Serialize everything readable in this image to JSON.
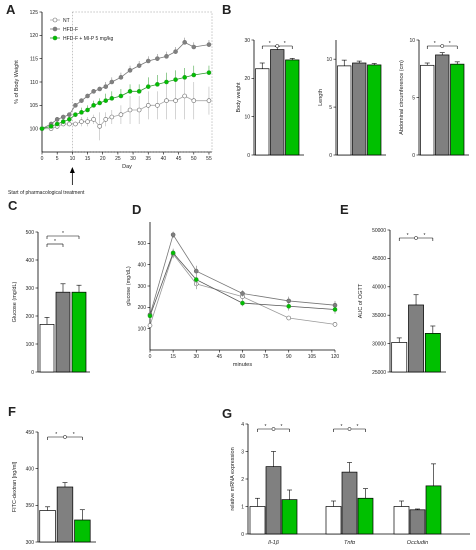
{
  "colors": {
    "nt": "#ffffff",
    "hfd": "#808080",
    "mip": "#00c000",
    "axis": "#000000"
  },
  "panels": {
    "A": {
      "label": "A",
      "legend": [
        "NT",
        "HFD-F",
        "HFD-F + MI-P 5 mg/kg"
      ],
      "annotation": "Start of pharmacological treatment",
      "chart_data": {
        "type": "line",
        "xlabel": "Day",
        "ylabel": "% of Body Weight",
        "xlim": [
          0,
          56
        ],
        "ylim": [
          95,
          125
        ],
        "xticks": [
          0,
          5,
          10,
          15,
          20,
          25,
          30,
          35,
          40,
          45,
          50,
          55
        ],
        "yticks": [
          100,
          105,
          110,
          115,
          120,
          125
        ],
        "treatment_day": 10,
        "series": [
          {
            "name": "NT",
            "x": [
              0,
              3,
              5,
              7,
              9,
              11,
              13,
              15,
              17,
              19,
              21,
              23,
              26,
              29,
              32,
              35,
              38,
              41,
              44,
              47,
              50,
              55
            ],
            "y": [
              100,
              100,
              100.5,
              101,
              101,
              101,
              101.5,
              101.5,
              102,
              100.5,
              102,
              102.5,
              103,
              104,
              104,
              105,
              105,
              106,
              106,
              107,
              106,
              106
            ],
            "err": [
              0.5,
              0.5,
              0.5,
              0.5,
              0.5,
              0.5,
              1,
              1,
              1,
              3,
              1.5,
              1.5,
              2,
              3,
              3,
              3,
              3,
              4,
              4,
              5,
              4,
              3
            ]
          },
          {
            "name": "HFD-F",
            "x": [
              0,
              3,
              5,
              7,
              9,
              11,
              13,
              15,
              17,
              19,
              21,
              23,
              26,
              29,
              32,
              35,
              38,
              41,
              44,
              47,
              50,
              55
            ],
            "y": [
              100,
              101,
              102,
              102.5,
              103,
              105,
              106,
              107,
              108,
              108.5,
              109,
              110,
              111,
              112.5,
              113.5,
              114.5,
              115,
              115.5,
              116.5,
              118.5,
              117.5,
              118
            ],
            "err": [
              0.3,
              0.5,
              0.5,
              0.5,
              0.5,
              0.5,
              0.5,
              0.5,
              0.5,
              0.5,
              1,
              1,
              1,
              1,
              1,
              1,
              1,
              1,
              1,
              1,
              1,
              1
            ]
          },
          {
            "name": "HFD-F + MI-P 5 mg/kg",
            "x": [
              0,
              3,
              5,
              7,
              9,
              11,
              13,
              15,
              17,
              19,
              21,
              23,
              26,
              29,
              32,
              35,
              38,
              41,
              44,
              47,
              50,
              55
            ],
            "y": [
              100,
              100.5,
              101,
              101.5,
              102,
              103,
              103.5,
              104,
              105,
              105.5,
              106,
              106.5,
              107,
              108,
              108,
              109,
              109.5,
              110,
              110.5,
              111,
              111.5,
              112
            ],
            "err": [
              0.3,
              0.5,
              0.5,
              0.5,
              0.5,
              0.5,
              1,
              1,
              1,
              1,
              1.5,
              1.5,
              1.5,
              1.5,
              1.5,
              2,
              2,
              2,
              2,
              2,
              2,
              1.5
            ]
          }
        ]
      }
    },
    "B": {
      "label": "B",
      "charts": [
        {
          "type": "bar",
          "ylabel": "Body weight",
          "ylim": [
            0,
            30
          ],
          "yticks": [
            0,
            10,
            20,
            30
          ],
          "values": [
            22.5,
            27.5,
            24.8
          ],
          "err": [
            1.5,
            0.8,
            0.4
          ],
          "sig": true
        },
        {
          "type": "bar",
          "ylabel": "Length",
          "ylim": [
            0,
            12
          ],
          "yticks": [
            0,
            5,
            10
          ],
          "values": [
            9.3,
            9.6,
            9.4
          ],
          "err": [
            0.6,
            0.2,
            0.15
          ],
          "sig": false
        },
        {
          "type": "bar",
          "ylabel": "Abdominal circumference (cm)",
          "ylim": [
            0,
            10
          ],
          "yticks": [
            0,
            5,
            10
          ],
          "values": [
            7.8,
            8.7,
            7.9
          ],
          "err": [
            0.2,
            0.2,
            0.2
          ],
          "sig": true
        }
      ]
    },
    "C": {
      "label": "C",
      "chart_data": {
        "type": "bar",
        "ylabel": "Glucose (mg/dL)",
        "ylim": [
          0,
          500
        ],
        "yticks": [
          0,
          100,
          200,
          300,
          400,
          500
        ],
        "values": [
          170,
          285,
          285
        ],
        "err": [
          25,
          30,
          25
        ],
        "sig": true
      }
    },
    "D": {
      "label": "D",
      "chart_data": {
        "type": "line",
        "xlabel": "minutes",
        "ylabel": "glucose (mg/dL)",
        "xlim": [
          0,
          120
        ],
        "ylim": [
          0,
          600
        ],
        "xticks": [
          0,
          15,
          30,
          45,
          60,
          75,
          90,
          105,
          120
        ],
        "yticks": [
          100,
          200,
          300,
          400,
          500
        ],
        "series": [
          {
            "name": "NT",
            "x": [
              0,
              15,
              30,
              60,
              90,
              120
            ],
            "y": [
              115,
              450,
              310,
              250,
              150,
              120
            ],
            "err": [
              10,
              20,
              25,
              15,
              10,
              10
            ]
          },
          {
            "name": "HFD-F",
            "x": [
              0,
              15,
              30,
              60,
              90,
              120
            ],
            "y": [
              165,
              540,
              370,
              265,
              230,
              210
            ],
            "err": [
              15,
              15,
              25,
              15,
              20,
              20
            ]
          },
          {
            "name": "HFD-F + MI-P 5 mg/kg",
            "x": [
              0,
              15,
              30,
              60,
              90,
              120
            ],
            "y": [
              160,
              455,
              330,
              220,
              205,
              190
            ],
            "err": [
              15,
              20,
              25,
              15,
              20,
              20
            ]
          }
        ]
      }
    },
    "E": {
      "label": "E",
      "chart_data": {
        "type": "bar",
        "ylabel": "AUC of OGTT",
        "ylim": [
          25000,
          50000
        ],
        "yticks": [
          25000,
          30000,
          35000,
          40000,
          45000,
          50000
        ],
        "values": [
          30200,
          36800,
          31800
        ],
        "err": [
          800,
          1800,
          1300
        ],
        "sig": true
      }
    },
    "F": {
      "label": "F",
      "chart_data": {
        "type": "bar",
        "ylabel": "FITC-dextran [ng/ml]",
        "ylim": [
          300,
          450
        ],
        "yticks": [
          300,
          350,
          400,
          450
        ],
        "values": [
          343,
          375,
          330
        ],
        "err": [
          5,
          6,
          14
        ],
        "sig": true
      }
    },
    "G": {
      "label": "G",
      "chart_data": {
        "type": "bar",
        "ylabel": "relative mRNA expression",
        "ylim": [
          0,
          4
        ],
        "yticks": [
          0,
          1,
          2,
          3,
          4
        ],
        "categories": [
          "Il-1β",
          "Tnfα",
          "Occludin"
        ],
        "series": [
          {
            "name": "NT",
            "values": [
              1.0,
              1.0,
              1.0
            ],
            "err": [
              0.3,
              0.2,
              0.2
            ]
          },
          {
            "name": "HFD-F",
            "values": [
              2.45,
              2.25,
              0.88
            ],
            "err": [
              0.55,
              0.35,
              0.03
            ]
          },
          {
            "name": "HFD-F + MI-P 5 mg/kg",
            "values": [
              1.25,
              1.3,
              1.75
            ],
            "err": [
              0.35,
              0.35,
              0.8
            ]
          }
        ],
        "sig": [
          true,
          true,
          false
        ]
      }
    }
  }
}
